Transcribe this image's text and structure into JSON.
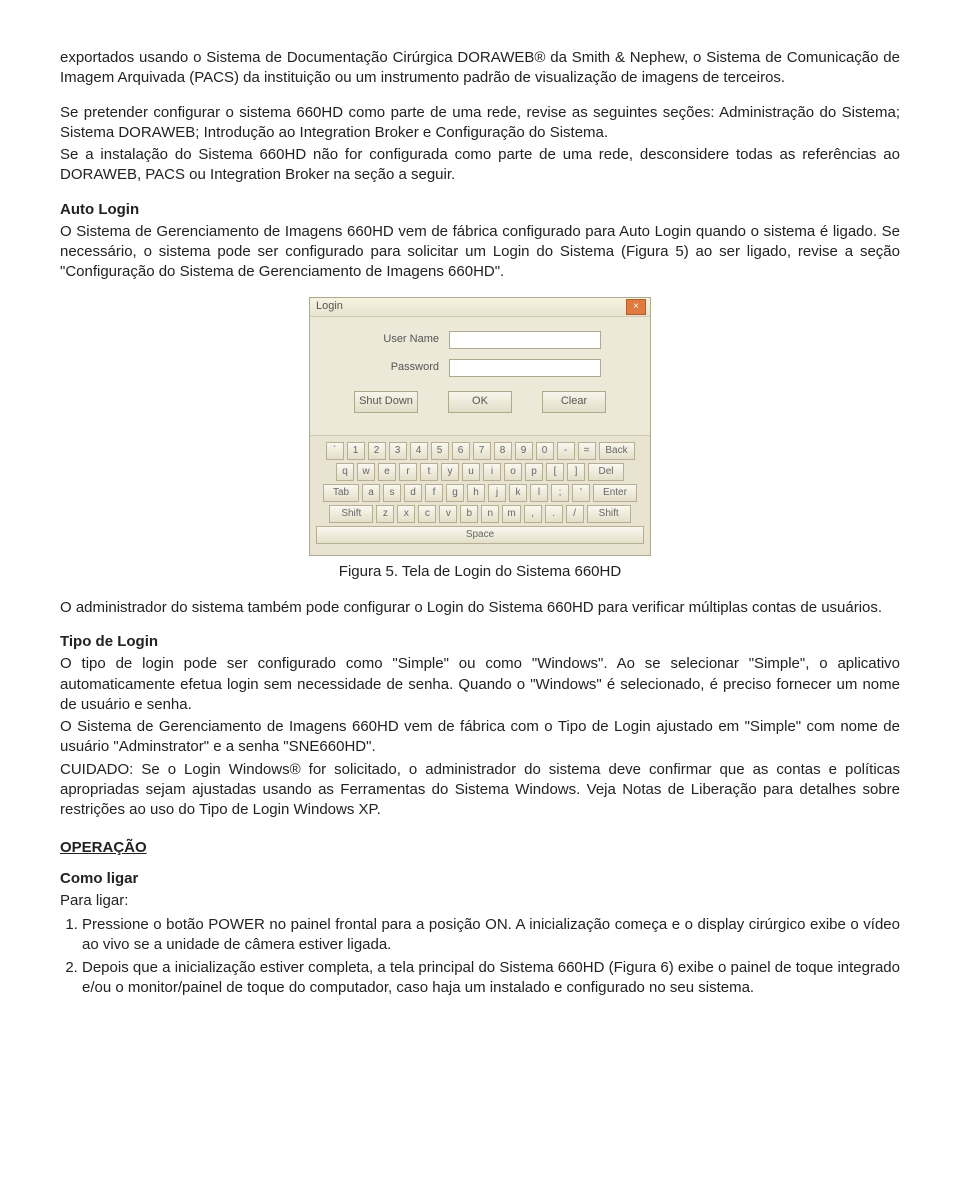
{
  "intro_para": "exportados usando o Sistema de Documentação Cirúrgica DORAWEB® da Smith & Nephew, o Sistema de Comunicação de Imagem Arquivada (PACS) da instituição ou um instrumento padrão de visualização de imagens de terceiros.",
  "config_para": "Se pretender configurar o sistema 660HD como parte de uma rede, revise as seguintes seções: Administração do Sistema; Sistema DORAWEB; Introdução ao Integration Broker e Configuração do Sistema.",
  "noconfig_para": "Se a instalação do Sistema 660HD não for configurada como parte de uma rede, desconsidere todas as referências ao DORAWEB, PACS ou Integration Broker na seção a seguir.",
  "autologin_title": "Auto Login",
  "autologin_para": "O Sistema de Gerenciamento de Imagens 660HD vem de fábrica configurado para Auto Login quando o sistema é ligado. Se necessário, o sistema pode ser configurado para solicitar um Login do Sistema (Figura 5) ao ser ligado, revise a seção \"Configuração do Sistema de Gerenciamento de Imagens 660HD\".",
  "figure_caption": "Figura 5. Tela de Login do Sistema 660HD",
  "admin_para": "O administrador do sistema também pode configurar o Login do Sistema 660HD para verificar múltiplas contas de usuários.",
  "tipo_title": "Tipo de Login",
  "tipo_p1": "O tipo de login pode ser configurado como \"Simple\" ou como \"Windows\". Ao se selecionar \"Simple\", o aplicativo automaticamente efetua login sem necessidade de senha. Quando o \"Windows\" é selecionado, é preciso fornecer um nome de usuário e senha.",
  "tipo_p2": "O Sistema de Gerenciamento de Imagens 660HD vem de fábrica com o Tipo de Login ajustado em \"Simple\" com nome de usuário \"Adminstrator\" e a senha \"SNE660HD\".",
  "tipo_p3": "CUIDADO: Se o Login Windows® for solicitado, o administrador do sistema deve confirmar que as contas e políticas apropriadas sejam ajustadas usando as Ferramentas do Sistema Windows. Veja Notas de Liberação para detalhes sobre restrições ao uso do Tipo de Login Windows XP.",
  "operacao_title": "OPERAÇÃO",
  "como_ligar_title": "Como ligar",
  "para_ligar": "Para ligar:",
  "step1": "Pressione o botão POWER no painel frontal para a posição ON. A inicialização começa e o display cirúrgico exibe o vídeo ao vivo se a unidade de câmera estiver ligada.",
  "step2": "Depois que a inicialização estiver completa, a tela principal do Sistema 660HD (Figura 6) exibe o painel de toque integrado e/ou o monitor/painel de toque do computador, caso haja um instalado e configurado no seu sistema.",
  "dialog": {
    "title": "Login",
    "user_label": "User Name",
    "pass_label": "Password",
    "btn_shutdown": "Shut Down",
    "btn_ok": "OK",
    "btn_clear": "Clear",
    "kb": {
      "r1": [
        "`",
        "1",
        "2",
        "3",
        "4",
        "5",
        "6",
        "7",
        "8",
        "9",
        "0",
        "-",
        "="
      ],
      "r1_back": "Back",
      "r2": [
        "q",
        "w",
        "e",
        "r",
        "t",
        "y",
        "u",
        "i",
        "o",
        "p",
        "[",
        "]"
      ],
      "r2_del": "Del",
      "r3_tab": "Tab",
      "r3": [
        "a",
        "s",
        "d",
        "f",
        "g",
        "h",
        "j",
        "k",
        "l",
        ";",
        "'"
      ],
      "r3_enter": "Enter",
      "r4_lshift": "Shift",
      "r4": [
        "z",
        "x",
        "c",
        "v",
        "b",
        "n",
        "m",
        ",",
        ".",
        "/"
      ],
      "r4_rshift": "Shift",
      "space": "Space"
    }
  }
}
